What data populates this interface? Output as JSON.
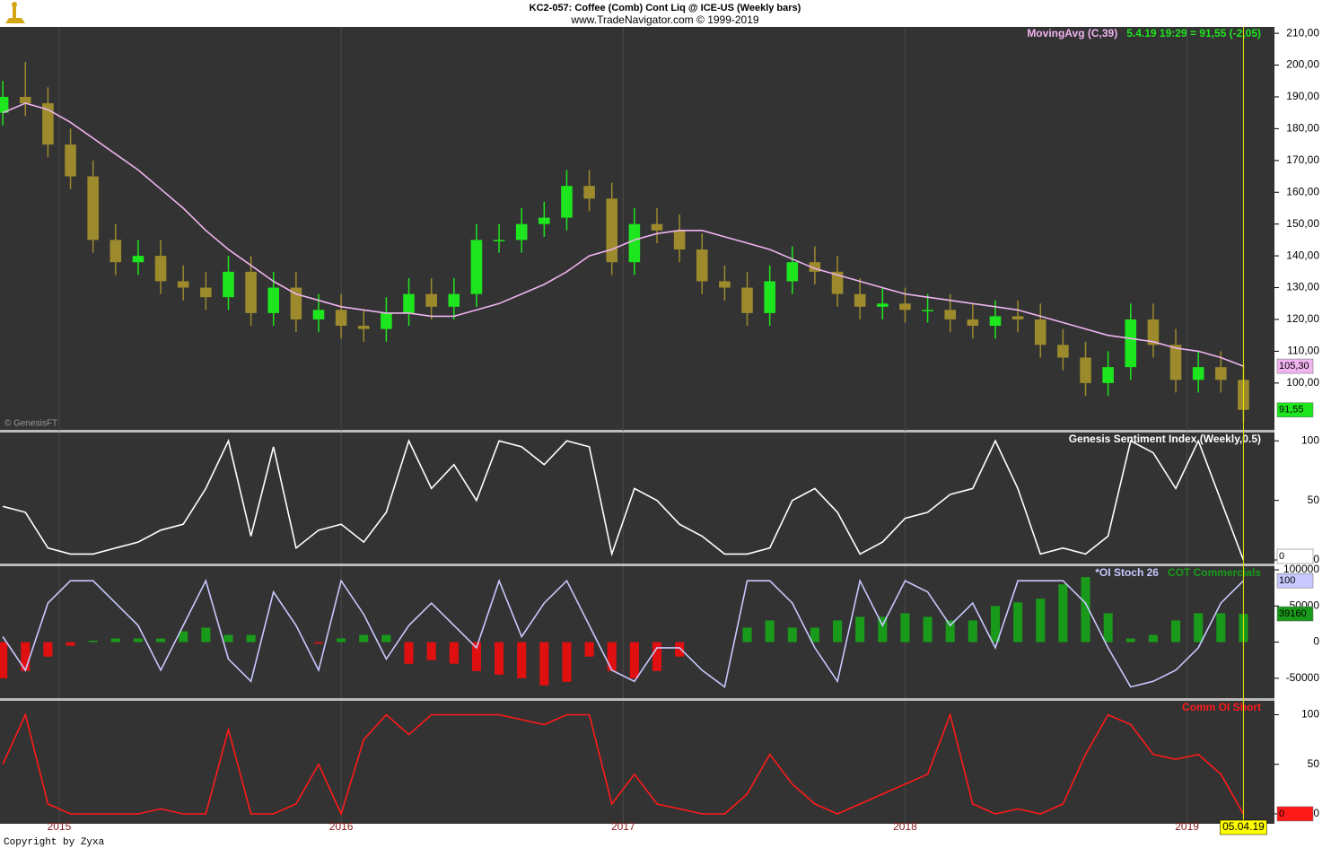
{
  "header": {
    "title": "KC2-057:  Coffee (Comb) Cont Liq @ ICE-US  (Weekly bars)",
    "subtitle": "www.TradeNavigator.com © 1999-2019"
  },
  "footer": {
    "copyright": "Copyright by Zyxa"
  },
  "chart_data": [
    {
      "type": "candlestick",
      "x": [
        2014.8,
        2014.88,
        2014.96,
        2015.04,
        2015.12,
        2015.2,
        2015.28,
        2015.36,
        2015.44,
        2015.52,
        2015.6,
        2015.68,
        2015.76,
        2015.84,
        2015.92,
        2016.0,
        2016.08,
        2016.16,
        2016.24,
        2016.32,
        2016.4,
        2016.48,
        2016.56,
        2016.64,
        2016.72,
        2016.8,
        2016.88,
        2016.96,
        2017.04,
        2017.12,
        2017.2,
        2017.28,
        2017.36,
        2017.44,
        2017.52,
        2017.6,
        2017.68,
        2017.76,
        2017.84,
        2017.92,
        2018.0,
        2018.08,
        2018.16,
        2018.24,
        2018.32,
        2018.4,
        2018.48,
        2018.56,
        2018.64,
        2018.72,
        2018.8,
        2018.88,
        2018.96,
        2019.04,
        2019.12,
        2019.2
      ],
      "xlim": [
        2014.79,
        2019.31
      ],
      "xticks": [
        2015,
        2016,
        2017,
        2018,
        2019
      ],
      "grid": true,
      "cursor_label": "05.04.19",
      "ylim": [
        85,
        212
      ],
      "yticks": [
        {
          "value": 100,
          "label": "100,00"
        },
        {
          "value": 110,
          "label": "110,00"
        },
        {
          "value": 120,
          "label": "120,00"
        },
        {
          "value": 130,
          "label": "130,00"
        },
        {
          "value": 140,
          "label": "140,00"
        },
        {
          "value": 150,
          "label": "150,00"
        },
        {
          "value": 160,
          "label": "160,00"
        },
        {
          "value": 170,
          "label": "170,00"
        },
        {
          "value": 180,
          "label": "180,00"
        },
        {
          "value": 190,
          "label": "190,00"
        },
        {
          "value": 200,
          "label": "200,00"
        },
        {
          "value": 210,
          "label": "210,00"
        }
      ],
      "annotations": [
        "5.4.19 19:29 = 91,55 (-2,05)",
        "© GenesisFT"
      ],
      "series": [
        {
          "type": "candlestick",
          "up_color": "#1ee61e",
          "down_color": "#9c8a2c",
          "last_label": "91,55",
          "open": [
            185,
            190,
            188,
            175,
            165,
            145,
            138,
            140,
            132,
            130,
            127,
            135,
            122,
            130,
            120,
            123,
            118,
            117,
            122,
            128,
            124,
            128,
            145,
            145,
            150,
            152,
            162,
            158,
            138,
            150,
            148,
            142,
            132,
            130,
            122,
            132,
            138,
            135,
            128,
            124,
            125,
            123,
            123,
            120,
            118,
            121,
            120,
            112,
            108,
            100,
            105,
            120,
            112,
            101,
            105,
            101
          ],
          "high": [
            195,
            201,
            193,
            180,
            170,
            150,
            145,
            145,
            137,
            135,
            140,
            140,
            135,
            135,
            128,
            128,
            123,
            127,
            133,
            133,
            133,
            150,
            150,
            155,
            157,
            167,
            167,
            163,
            155,
            155,
            153,
            147,
            137,
            135,
            137,
            143,
            143,
            140,
            133,
            130,
            130,
            128,
            128,
            125,
            126,
            126,
            125,
            117,
            113,
            110,
            125,
            125,
            117,
            110,
            110,
            106
          ],
          "low": [
            181,
            184,
            171,
            161,
            141,
            134,
            134,
            128,
            126,
            123,
            123,
            118,
            118,
            116,
            116,
            114,
            113,
            113,
            118,
            120,
            120,
            124,
            141,
            141,
            146,
            148,
            154,
            134,
            134,
            144,
            138,
            128,
            126,
            118,
            118,
            128,
            131,
            124,
            120,
            120,
            119,
            119,
            116,
            114,
            114,
            116,
            108,
            104,
            96,
            96,
            101,
            108,
            97,
            97,
            97,
            87.55
          ],
          "close": [
            190,
            188,
            175,
            165,
            145,
            138,
            140,
            132,
            130,
            127,
            135,
            122,
            130,
            120,
            123,
            118,
            117,
            122,
            128,
            124,
            128,
            145,
            145,
            150,
            152,
            162,
            158,
            138,
            150,
            148,
            142,
            132,
            130,
            122,
            132,
            138,
            135,
            128,
            124,
            125,
            123,
            123,
            120,
            118,
            121,
            120,
            112,
            108,
            100,
            105,
            120,
            112,
            101,
            105,
            101,
            91.55
          ]
        },
        {
          "type": "line",
          "name": "MovingAvg (C,39)",
          "color": "#f0b4f0",
          "last_label": "105,30",
          "values": [
            185,
            188,
            186,
            182,
            177,
            172,
            167,
            161,
            155,
            148,
            142,
            137,
            132,
            128,
            126,
            124,
            123,
            122,
            122,
            121,
            121,
            123,
            125,
            128,
            131,
            135,
            140,
            142,
            145,
            147,
            148,
            148,
            146,
            144,
            142,
            139,
            136,
            134,
            132,
            130,
            128,
            127,
            126,
            125,
            124,
            123,
            121,
            119,
            117,
            115,
            114,
            113,
            111,
            110,
            108,
            105.3
          ]
        }
      ]
    },
    {
      "type": "line",
      "ylim": [
        -3,
        107
      ],
      "yticks": [
        0,
        50,
        100
      ],
      "series": [
        {
          "type": "line",
          "name": "Genesis Sentiment Index (Weekly,0.5)",
          "color": "#ffffff",
          "values": [
            45,
            40,
            10,
            5,
            5,
            10,
            15,
            25,
            30,
            60,
            100,
            20,
            95,
            10,
            25,
            30,
            15,
            40,
            100,
            60,
            80,
            50,
            100,
            95,
            80,
            100,
            95,
            5,
            60,
            50,
            30,
            20,
            5,
            5,
            10,
            50,
            60,
            40,
            5,
            15,
            35,
            40,
            55,
            60,
            100,
            60,
            5,
            10,
            5,
            20,
            100,
            90,
            60,
            100,
            50,
            0
          ]
        }
      ]
    },
    {
      "type": "bar",
      "ylim": [
        -77500,
        105000
      ],
      "yticks": [
        -50000,
        0,
        50000,
        100000
      ],
      "y2lim": [
        -5,
        113
      ],
      "series": [
        {
          "type": "bar",
          "name": "COT Commercials",
          "color": "#1a9a1a",
          "negative_color": "#e01010",
          "values": [
            -50000,
            -40000,
            -20000,
            -5000,
            2000,
            5000,
            5000,
            5000,
            15000,
            20000,
            10000,
            10000,
            0,
            0,
            -2000,
            5000,
            10000,
            10000,
            -30000,
            -25000,
            -30000,
            -40000,
            -45000,
            -50000,
            -60000,
            -55000,
            -20000,
            -40000,
            -50000,
            -40000,
            -20000,
            0,
            0,
            20000,
            30000,
            20000,
            20000,
            30000,
            35000,
            35000,
            40000,
            35000,
            30000,
            30000,
            50000,
            55000,
            60000,
            80000,
            90000,
            40000,
            5000,
            10000,
            30000,
            40000,
            40000,
            39160
          ]
        },
        {
          "type": "line",
          "name": "*OI Stoch 26",
          "color": "#c8c8ff",
          "axis": "y2",
          "values": [
            50,
            20,
            80,
            100,
            100,
            80,
            60,
            20,
            60,
            100,
            30,
            10,
            90,
            60,
            20,
            100,
            70,
            30,
            60,
            80,
            60,
            40,
            100,
            50,
            80,
            100,
            60,
            20,
            10,
            40,
            40,
            20,
            5,
            100,
            100,
            80,
            40,
            10,
            100,
            60,
            100,
            90,
            60,
            80,
            40,
            100,
            100,
            100,
            80,
            40,
            5,
            10,
            20,
            40,
            80,
            100
          ]
        }
      ]
    },
    {
      "type": "line",
      "ylim": [
        -10,
        114
      ],
      "yticks": [
        0,
        50,
        100
      ],
      "series": [
        {
          "type": "line",
          "name": "Comm OI Short",
          "color": "#ff1a1a",
          "values": [
            50,
            100,
            10,
            0,
            0,
            0,
            0,
            5,
            0,
            0,
            85,
            0,
            0,
            10,
            50,
            0,
            75,
            100,
            80,
            100,
            100,
            100,
            100,
            95,
            90,
            100,
            100,
            10,
            40,
            10,
            5,
            0,
            0,
            20,
            60,
            30,
            10,
            0,
            10,
            20,
            30,
            40,
            100,
            10,
            0,
            5,
            0,
            10,
            60,
            100,
            90,
            60,
            55,
            60,
            40,
            0
          ]
        }
      ]
    }
  ]
}
